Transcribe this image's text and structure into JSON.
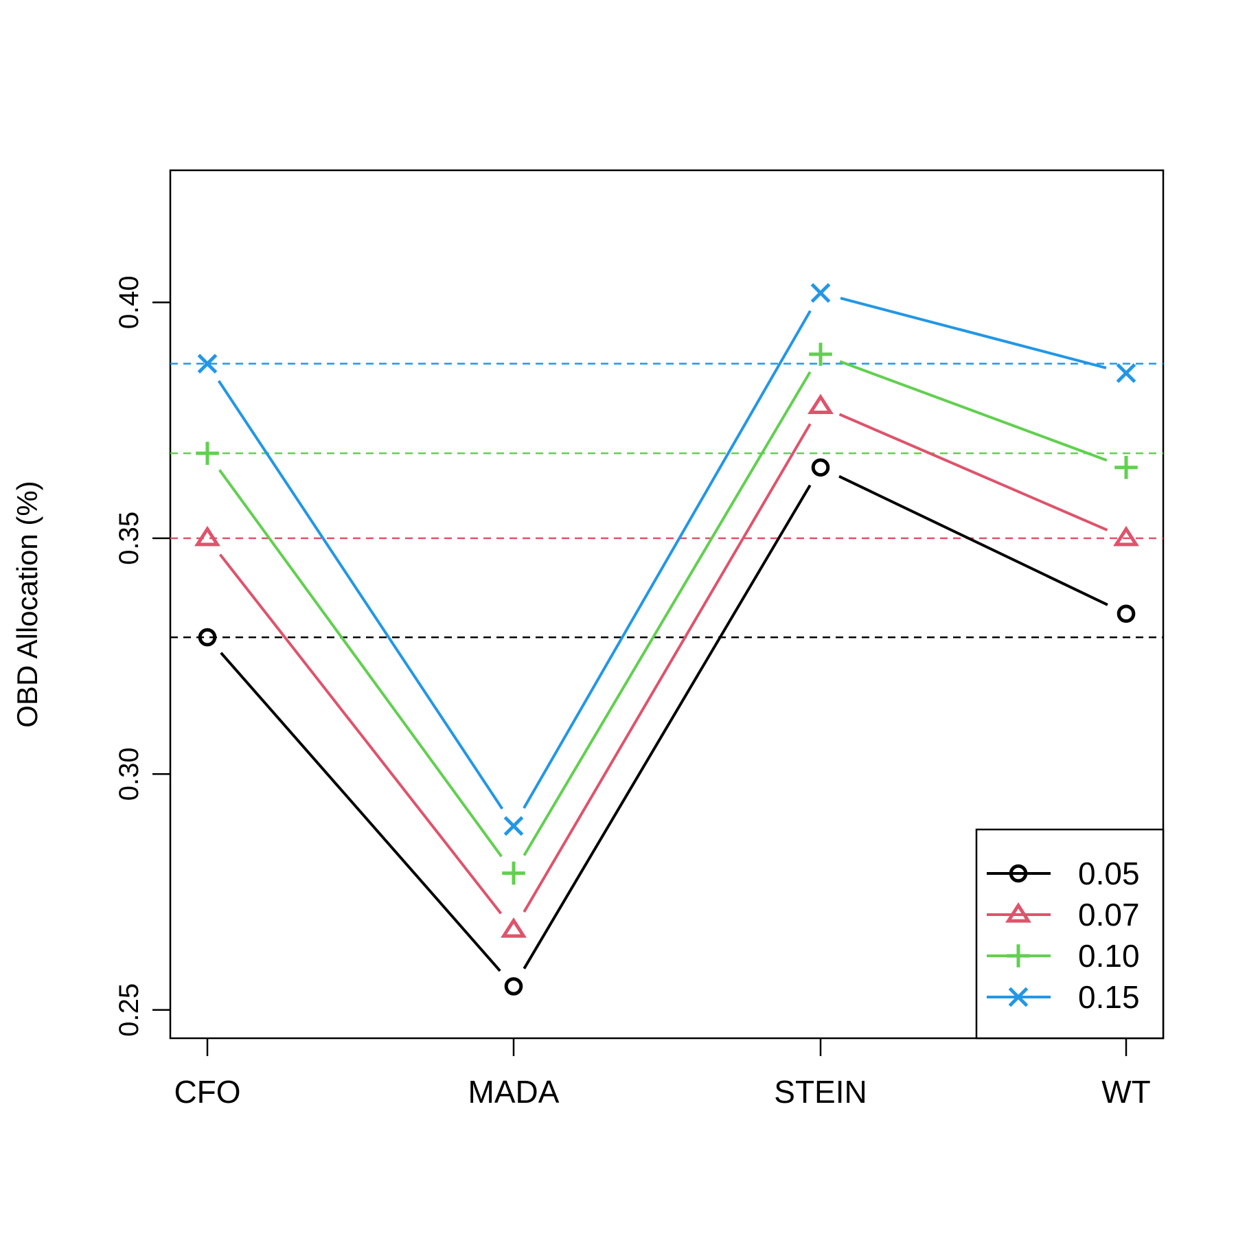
{
  "chart_data": {
    "type": "line",
    "title": "",
    "xlabel": "",
    "ylabel": "OBD Allocation (%)",
    "categories": [
      "CFO",
      "MADA",
      "STEIN",
      "WT"
    ],
    "ylim": [
      0.244,
      0.428
    ],
    "yticks": [
      "0.25",
      "0.30",
      "0.35",
      "0.40"
    ],
    "grid": false,
    "legend_position": "bottom-right",
    "series": [
      {
        "name": "0.05",
        "values": [
          0.329,
          0.255,
          0.365,
          0.334
        ],
        "color": "#000000",
        "marker": "circle",
        "reference": 0.329
      },
      {
        "name": "0.07",
        "values": [
          0.35,
          0.267,
          0.378,
          0.35
        ],
        "color": "#DF536B",
        "marker": "triangle",
        "reference": 0.35
      },
      {
        "name": "0.10",
        "values": [
          0.368,
          0.279,
          0.389,
          0.365
        ],
        "color": "#61D04F",
        "marker": "plus",
        "reference": 0.368
      },
      {
        "name": "0.15",
        "values": [
          0.387,
          0.289,
          0.402,
          0.385
        ],
        "color": "#2297E6",
        "marker": "cross",
        "reference": 0.387
      }
    ]
  }
}
